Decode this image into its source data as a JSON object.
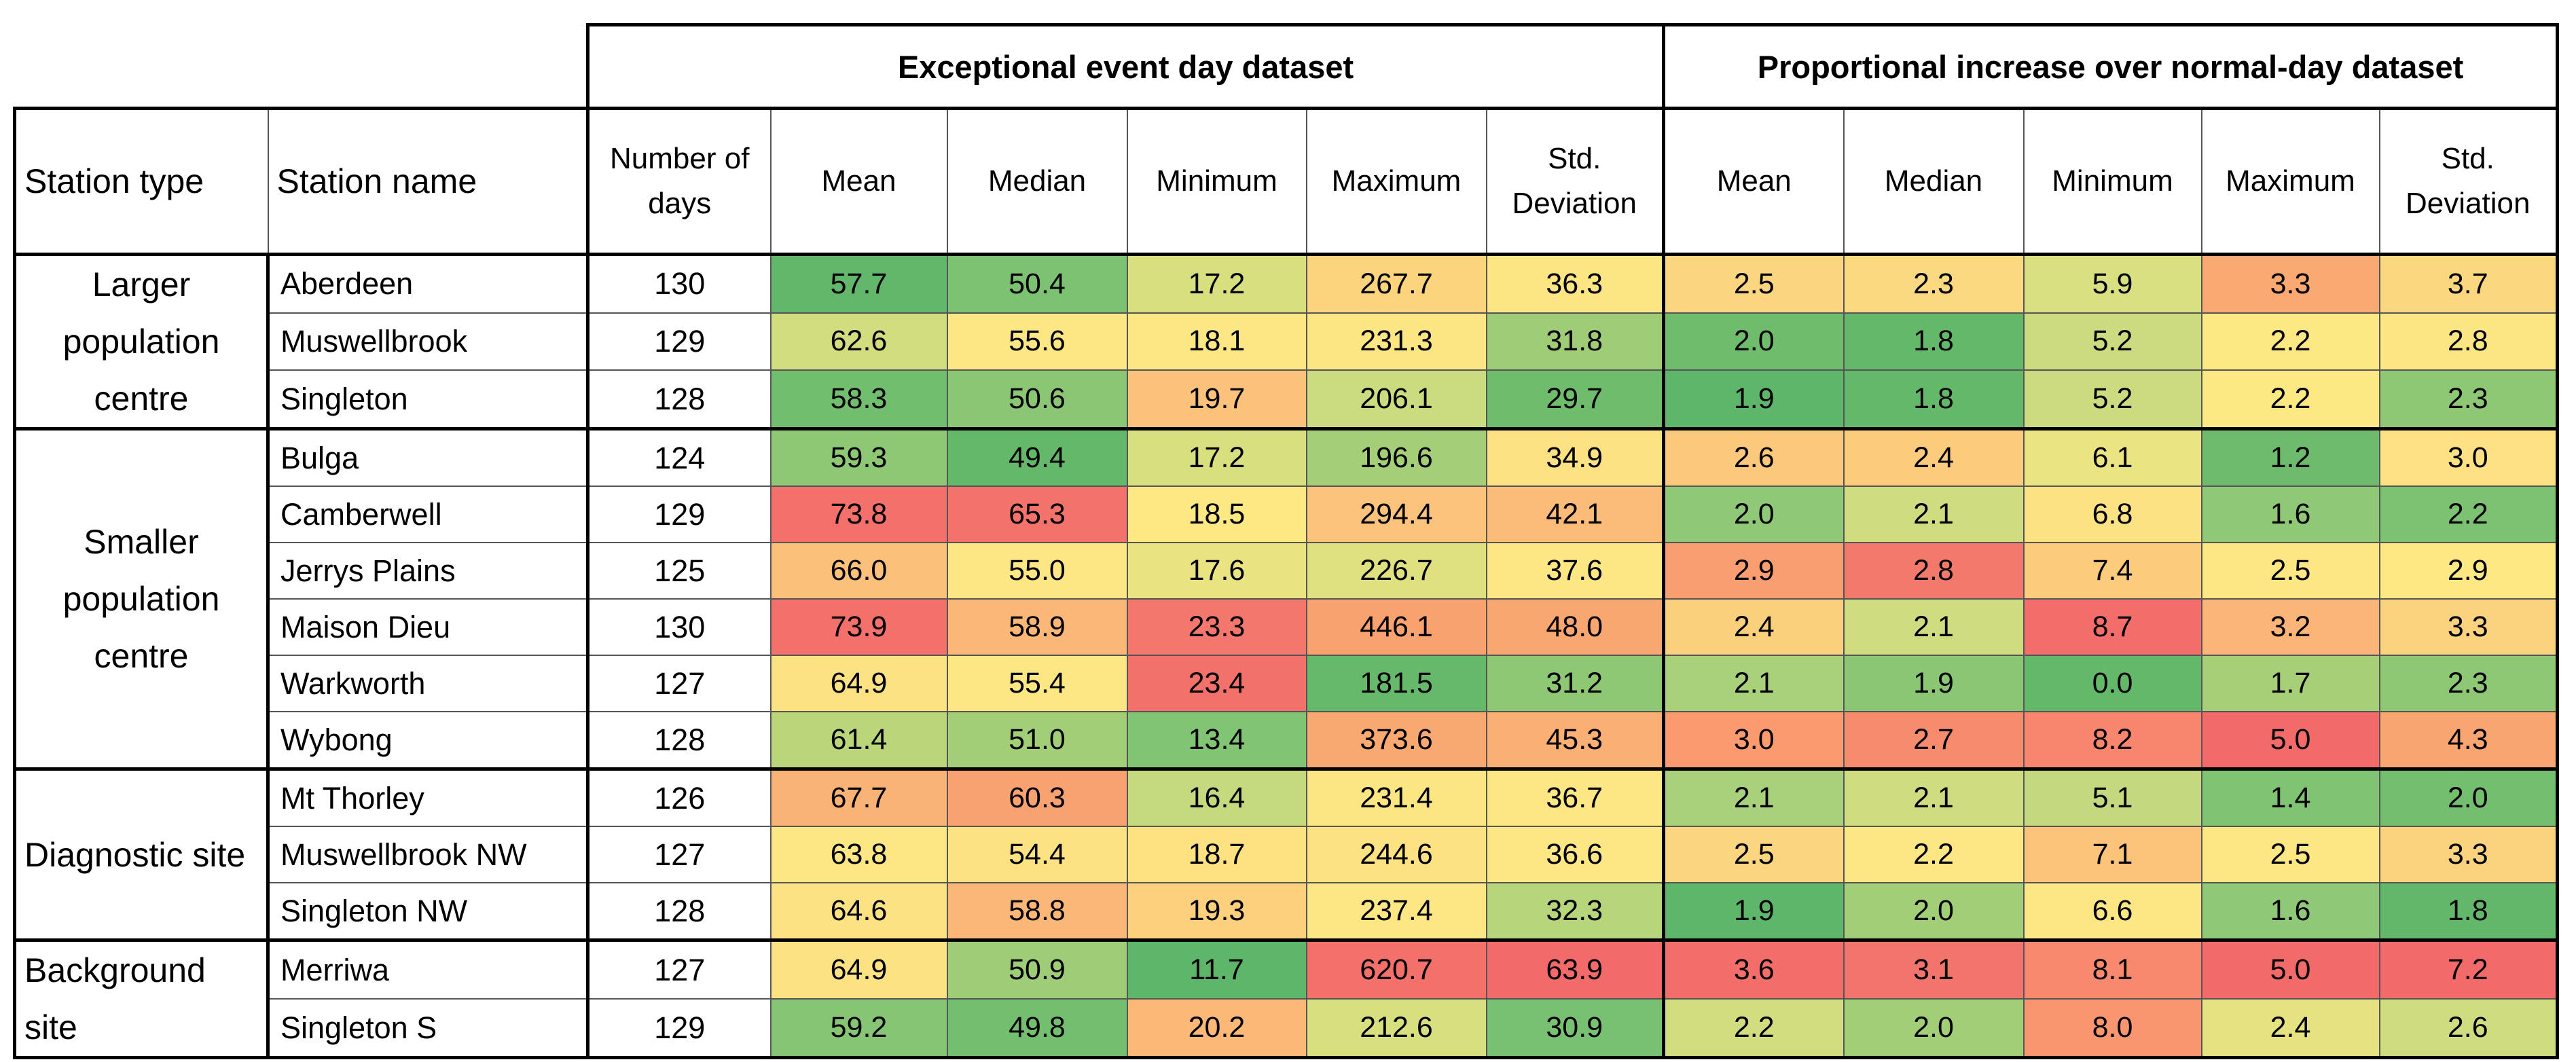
{
  "table": {
    "group_headers": [
      "Exceptional event day dataset",
      "Proportional increase over  normal-day dataset"
    ],
    "columns": [
      "Station type",
      "Station name",
      "Number of days",
      "Mean",
      "Median",
      "Minimum",
      "Maximum",
      "Std. Deviation",
      "Mean",
      "Median",
      "Minimum",
      "Maximum",
      "Std. Deviation"
    ],
    "groups": [
      {
        "type": "Larger population centre",
        "rows": [
          {
            "name": "Aberdeen",
            "days": "130",
            "values": [
              "57.7",
              "50.4",
              "17.2",
              "267.7",
              "36.3",
              "2.5",
              "2.3",
              "5.9",
              "3.3",
              "3.7"
            ],
            "colors": [
              "#62b76a",
              "#7cc272",
              "#d8df7e",
              "#fcd47d",
              "#fbe683",
              "#fbd57f",
              "#fbd980",
              "#d9e081",
              "#f9a971",
              "#fbd77f"
            ]
          },
          {
            "name": "Muswellbrook",
            "days": "129",
            "values": [
              "62.6",
              "55.6",
              "18.1",
              "231.3",
              "31.8",
              "2.0",
              "1.8",
              "5.2",
              "2.2",
              "2.8"
            ],
            "colors": [
              "#d1dd7e",
              "#fde784",
              "#fde784",
              "#fbe683",
              "#9fcd77",
              "#6fbc6d",
              "#64b86a",
              "#cddb80",
              "#fde984",
              "#fbe683"
            ]
          },
          {
            "name": "Singleton",
            "days": "128",
            "values": [
              "58.3",
              "50.6",
              "19.7",
              "206.1",
              "29.7",
              "1.9",
              "1.8",
              "5.2",
              "2.2",
              "2.3"
            ],
            "colors": [
              "#72be6f",
              "#8ac674",
              "#fcc17b",
              "#cbdb7f",
              "#6fbc6d",
              "#5eb66a",
              "#64b86a",
              "#cddb80",
              "#fde984",
              "#8ec875"
            ]
          }
        ]
      },
      {
        "type": "Smaller population centre",
        "rows": [
          {
            "name": "Bulga",
            "days": "124",
            "values": [
              "59.3",
              "49.4",
              "17.2",
              "196.6",
              "34.9",
              "2.6",
              "2.4",
              "6.1",
              "1.2",
              "3.0"
            ],
            "colors": [
              "#8ec875",
              "#63b86a",
              "#d8df7e",
              "#a4cf78",
              "#fde283",
              "#fbc87c",
              "#fccb7c",
              "#ebe482",
              "#6ebb6d",
              "#fde184"
            ]
          },
          {
            "name": "Camberwell",
            "days": "129",
            "values": [
              "73.8",
              "65.3",
              "18.5",
              "294.4",
              "42.1",
              "2.0",
              "2.1",
              "6.8",
              "1.6",
              "2.2"
            ],
            "colors": [
              "#f3706b",
              "#f3736c",
              "#fee884",
              "#fbc37b",
              "#fbbc7a",
              "#8fc876",
              "#cfdc80",
              "#fde283",
              "#8fc876",
              "#7cc272"
            ]
          },
          {
            "name": "Jerrys Plains",
            "days": "125",
            "values": [
              "66.0",
              "55.0",
              "17.6",
              "226.7",
              "37.6",
              "2.9",
              "2.8",
              "7.4",
              "2.5",
              "2.9"
            ],
            "colors": [
              "#fbc17b",
              "#fde784",
              "#eae381",
              "#dfe07f",
              "#fde784",
              "#f89e70",
              "#f4796d",
              "#fccb7c",
              "#fde784",
              "#fee884"
            ]
          },
          {
            "name": "Maison Dieu",
            "days": "130",
            "values": [
              "73.9",
              "58.9",
              "23.3",
              "446.1",
              "48.0",
              "2.4",
              "2.1",
              "8.7",
              "3.2",
              "3.3"
            ],
            "colors": [
              "#f3706b",
              "#fbb778",
              "#f4776d",
              "#f8a26f",
              "#f9a771",
              "#fbd07d",
              "#cfdc80",
              "#f36e6b",
              "#fbb578",
              "#fbd37e"
            ]
          },
          {
            "name": "Warkworth",
            "days": "127",
            "values": [
              "64.9",
              "55.4",
              "23.4",
              "181.5",
              "31.2",
              "2.1",
              "1.9",
              "0.0",
              "1.7",
              "2.3"
            ],
            "colors": [
              "#fde283",
              "#fde784",
              "#f3716b",
              "#66b96b",
              "#8ec875",
              "#a9d07a",
              "#8ac674",
              "#63b86a",
              "#a6cf78",
              "#8ec875"
            ]
          },
          {
            "name": "Wybong",
            "days": "128",
            "values": [
              "61.4",
              "51.0",
              "13.4",
              "373.6",
              "45.3",
              "3.0",
              "2.7",
              "8.2",
              "5.0",
              "4.3"
            ],
            "colors": [
              "#bbd67a",
              "#a2ce78",
              "#81c473",
              "#f8a971",
              "#faaf75",
              "#fb9a6f",
              "#f78b6d",
              "#f8866e",
              "#f36a6a",
              "#f9a571"
            ]
          }
        ]
      },
      {
        "type": "Diagnostic site",
        "rows": [
          {
            "name": "Mt Thorley",
            "days": "126",
            "values": [
              "67.7",
              "60.3",
              "16.4",
              "231.4",
              "36.7",
              "2.1",
              "2.1",
              "5.1",
              "1.4",
              "2.0"
            ],
            "colors": [
              "#fab376",
              "#f9a271",
              "#c5d97e",
              "#fbe683",
              "#fde784",
              "#a9d07a",
              "#cfdc80",
              "#c3d87f",
              "#7fc373",
              "#74bf6f"
            ]
          },
          {
            "name": "Muswellbrook NW",
            "days": "127",
            "values": [
              "63.8",
              "54.4",
              "18.7",
              "244.6",
              "36.6",
              "2.5",
              "2.2",
              "7.1",
              "2.5",
              "3.3"
            ],
            "colors": [
              "#fde784",
              "#fde284",
              "#fee282",
              "#fde283",
              "#fde784",
              "#fbd57f",
              "#fde784",
              "#fcc37b",
              "#fde784",
              "#fbd37e"
            ]
          },
          {
            "name": "Singleton NW",
            "days": "128",
            "values": [
              "64.6",
              "58.8",
              "19.3",
              "237.4",
              "32.3",
              "1.9",
              "2.0",
              "6.6",
              "1.6",
              "1.8"
            ],
            "colors": [
              "#fde283",
              "#fbb778",
              "#fdd07e",
              "#fde784",
              "#b7d57a",
              "#5eb66a",
              "#a1ce77",
              "#fde784",
              "#8fc876",
              "#62b76a"
            ]
          }
        ]
      },
      {
        "type": "Background site",
        "rows": [
          {
            "name": "Merriwa",
            "days": "127",
            "values": [
              "64.9",
              "50.9",
              "11.7",
              "620.7",
              "63.9",
              "3.6",
              "3.1",
              "8.1",
              "5.0",
              "7.2"
            ],
            "colors": [
              "#fde283",
              "#9fcd77",
              "#5eb66a",
              "#f3706b",
              "#f36a6a",
              "#f36e6b",
              "#f3746c",
              "#f8886e",
              "#f36a6a",
              "#f36a6a"
            ]
          },
          {
            "name": "Singleton S",
            "days": "129",
            "values": [
              "59.2",
              "49.8",
              "20.2",
              "212.6",
              "30.9",
              "2.2",
              "2.0",
              "8.0",
              "2.4",
              "2.6"
            ],
            "colors": [
              "#86c574",
              "#73bf6f",
              "#fbb877",
              "#d7df7f",
              "#79c172",
              "#d2dd80",
              "#a1ce77",
              "#f9966f",
              "#e6e281",
              "#d0dc80"
            ]
          }
        ]
      }
    ]
  }
}
